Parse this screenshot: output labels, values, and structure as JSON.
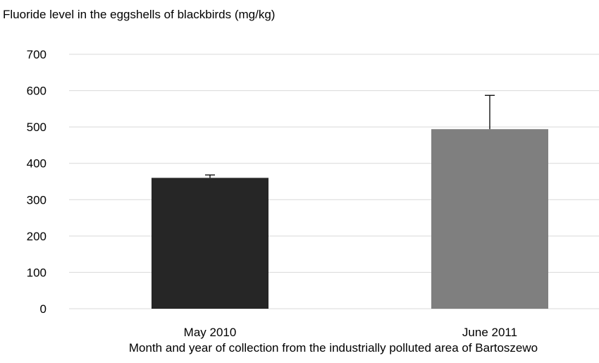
{
  "chart_data": {
    "type": "bar",
    "title": "Fluoride level in the eggshells of blackbirds (mg/kg)",
    "xlabel": "Month and year of collection from the industrially polluted area of Bartoszewo",
    "ylabel": "",
    "ylim": [
      0,
      700
    ],
    "yticks": [
      0,
      100,
      200,
      300,
      400,
      500,
      600,
      700
    ],
    "categories": [
      "May 2010",
      "June 2011"
    ],
    "values": [
      360,
      494
    ],
    "error_upper": [
      8,
      93
    ],
    "bar_colors": [
      "#262626",
      "#7f7f7f"
    ],
    "grid": true,
    "legend": "none"
  }
}
